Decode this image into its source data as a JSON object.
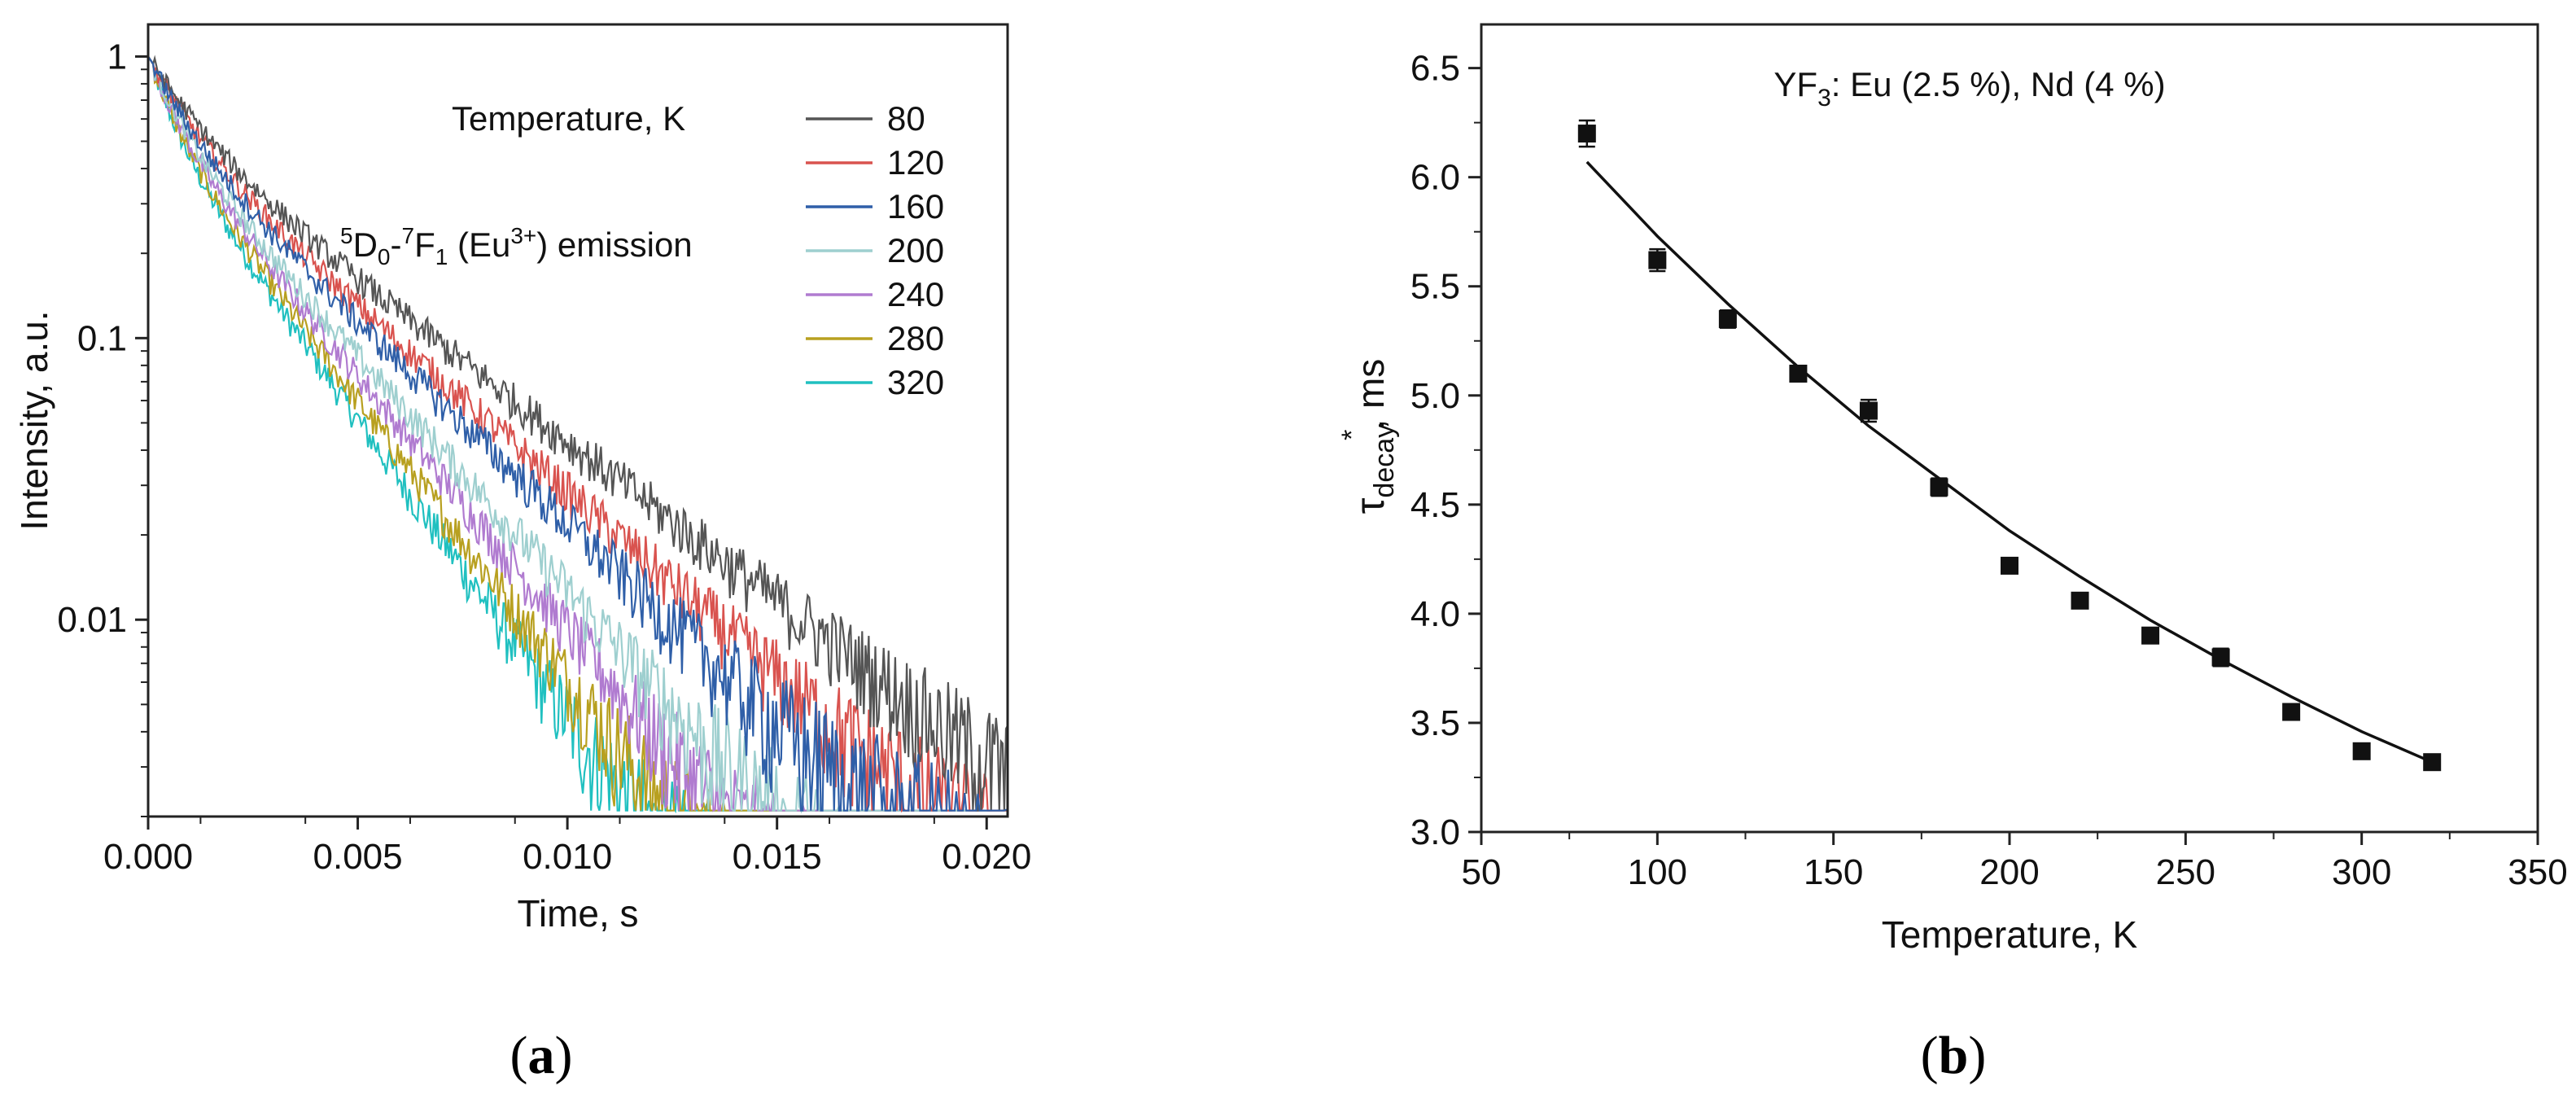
{
  "chart_data": [
    {
      "type": "line",
      "panel_label": {
        "open": "(",
        "letter": "a",
        "close": ")"
      },
      "xlabel": "Time, s",
      "ylabel": "Intensity, a.u.",
      "xlim": [
        0,
        0.0205
      ],
      "ylim": [
        0.002,
        1.3
      ],
      "yscale": "log",
      "x_ticks": [
        "0.000",
        "0.005",
        "0.010",
        "0.015",
        "0.020"
      ],
      "x_tick_values": [
        0,
        0.005,
        0.01,
        0.015,
        0.02
      ],
      "y_ticks": [
        "1",
        "0.1",
        "0.01"
      ],
      "y_tick_values": [
        1,
        0.1,
        0.01
      ],
      "legend_title": "Temperature, K",
      "legend_position": "top-right",
      "annotation": {
        "sup1": "5",
        "main1": "D",
        "sub1": "0",
        "dash": "-",
        "sup2": "7",
        "main2": "F",
        "sub2": "1",
        "mid": " (Eu",
        "sup3": "3+",
        "end": ") emission"
      },
      "grid": false,
      "series": [
        {
          "name": "80",
          "color": "#555555",
          "tau_ms": 6.2,
          "noise": 0.0022
        },
        {
          "name": "120",
          "color": "#d9534f",
          "tau_ms": 5.35,
          "noise": 0.0025
        },
        {
          "name": "160",
          "color": "#2f5fa8",
          "tau_ms": 4.93,
          "noise": 0.0035
        },
        {
          "name": "200",
          "color": "#9ecfcf",
          "tau_ms": 4.22,
          "noise": 0.003
        },
        {
          "name": "240",
          "color": "#b07bd0",
          "tau_ms": 3.9,
          "noise": 0.0028
        },
        {
          "name": "280",
          "color": "#b8a020",
          "tau_ms": 3.55,
          "noise": 0.003
        },
        {
          "name": "320",
          "color": "#20c0c0",
          "tau_ms": 3.32,
          "noise": 0.0032
        }
      ]
    },
    {
      "type": "scatter",
      "panel_label": {
        "open": "(",
        "letter": "b",
        "close": ")"
      },
      "xlabel": "Temperature, K",
      "ylabel": {
        "main": "τ",
        "sub": "decay",
        "sup": "*",
        "unit": ", ms"
      },
      "title": {
        "a": "YF",
        "sub": "3",
        "b": ": Eu (2.5 %), Nd (4 %)"
      },
      "xlim": [
        50,
        350
      ],
      "ylim": [
        3.0,
        6.7
      ],
      "x_ticks": [
        "50",
        "100",
        "150",
        "200",
        "250",
        "300",
        "350"
      ],
      "x_tick_values": [
        50,
        100,
        150,
        200,
        250,
        300,
        350
      ],
      "y_ticks": [
        "3.0",
        "3.5",
        "4.0",
        "4.5",
        "5.0",
        "5.5",
        "6.0",
        "6.5"
      ],
      "y_tick_values": [
        3.0,
        3.5,
        4.0,
        4.5,
        5.0,
        5.5,
        6.0,
        6.5
      ],
      "grid": false,
      "points": {
        "x": [
          80,
          100,
          120,
          140,
          160,
          180,
          200,
          220,
          240,
          260,
          280,
          300,
          320
        ],
        "y": [
          6.2,
          5.62,
          5.35,
          5.1,
          4.93,
          4.58,
          4.22,
          4.06,
          3.9,
          3.8,
          3.55,
          3.37,
          3.32
        ],
        "yerr": [
          0.06,
          0.05,
          0.04,
          0.02,
          0.05,
          0.04,
          0.03,
          0.02,
          0.02,
          0.04,
          0.02,
          0.03,
          0.02
        ]
      },
      "fit": {
        "x": [
          80,
          100,
          120,
          140,
          160,
          180,
          200,
          220,
          240,
          260,
          280,
          300,
          320
        ],
        "y": [
          6.07,
          5.73,
          5.42,
          5.13,
          4.86,
          4.62,
          4.38,
          4.17,
          3.97,
          3.79,
          3.62,
          3.46,
          3.32
        ]
      }
    }
  ]
}
